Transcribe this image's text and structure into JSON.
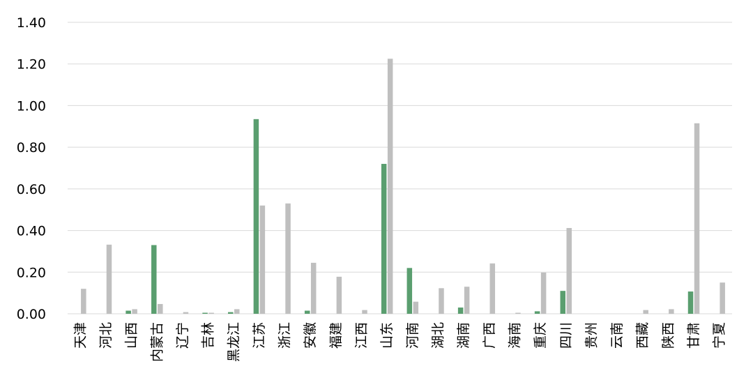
{
  "chart_data": {
    "type": "bar",
    "categories": [
      "天津",
      "河北",
      "山西",
      "内蒙古",
      "辽宁",
      "吉林",
      "黑龙江",
      "江苏",
      "浙江",
      "安徽",
      "福建",
      "江西",
      "山东",
      "河南",
      "湖北",
      "湖南",
      "广西",
      "海南",
      "重庆",
      "四川",
      "贵州",
      "云南",
      "西藏",
      "陕西",
      "甘肃",
      "宁夏"
    ],
    "series": [
      {
        "color": "#5a9e6f",
        "values": [
          0,
          0,
          0.015,
          0.33,
          0,
          0.005,
          0.008,
          0.935,
          0,
          0.015,
          0,
          0,
          0.72,
          0.22,
          0,
          0.03,
          0,
          0,
          0.012,
          0.11,
          0,
          0,
          0,
          0,
          0.107,
          0
        ]
      },
      {
        "color": "#bfbfbf",
        "values": [
          0.12,
          0.332,
          0.022,
          0.047,
          0.008,
          0.005,
          0.022,
          0.52,
          0.53,
          0.245,
          0.178,
          0.018,
          1.225,
          0.058,
          0.123,
          0.13,
          0.242,
          0.005,
          0.198,
          0.412,
          0,
          0,
          0.018,
          0.022,
          0.915,
          0.15
        ]
      }
    ],
    "ylim": [
      0,
      1.4
    ],
    "yticks": [
      "0.00",
      "0.20",
      "0.40",
      "0.60",
      "0.80",
      "1.00",
      "1.20",
      "1.40"
    ],
    "grid": true,
    "legend": "none",
    "title": "",
    "xlabel": "",
    "ylabel": ""
  }
}
